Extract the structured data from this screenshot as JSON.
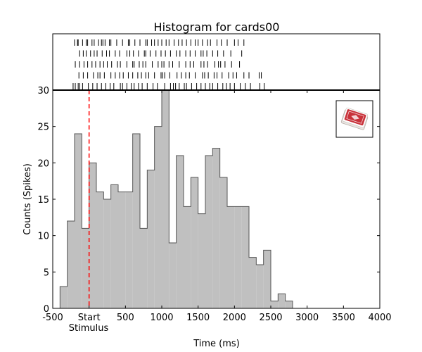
{
  "chart_data": {
    "type": "bar",
    "title": "Histogram for cards00",
    "xlabel": "Time (ms)",
    "ylabel": "Counts (Spikes)",
    "xlim": [
      -500,
      4000
    ],
    "ylim": [
      0,
      30
    ],
    "xticks": [
      {
        "value": -500,
        "label": "-500"
      },
      {
        "value": 0,
        "label": "Start"
      },
      {
        "value": 500,
        "label": "500"
      },
      {
        "value": 1000,
        "label": "1000"
      },
      {
        "value": 1500,
        "label": "1500"
      },
      {
        "value": 2000,
        "label": "2000"
      },
      {
        "value": 2500,
        "label": "2500"
      },
      {
        "value": 3000,
        "label": "3000"
      },
      {
        "value": 3500,
        "label": "3500"
      },
      {
        "value": 4000,
        "label": "4000"
      }
    ],
    "yticks": [
      0,
      5,
      10,
      15,
      20,
      25,
      30
    ],
    "stimulus_label": "Stimulus",
    "stimulus_time": 0,
    "bin_width": 100,
    "bins": [
      {
        "start": -400,
        "count": 3
      },
      {
        "start": -300,
        "count": 12
      },
      {
        "start": -200,
        "count": 24
      },
      {
        "start": -100,
        "count": 11
      },
      {
        "start": 0,
        "count": 20
      },
      {
        "start": 100,
        "count": 16
      },
      {
        "start": 200,
        "count": 15
      },
      {
        "start": 300,
        "count": 17
      },
      {
        "start": 400,
        "count": 16
      },
      {
        "start": 500,
        "count": 16
      },
      {
        "start": 600,
        "count": 24
      },
      {
        "start": 700,
        "count": 11
      },
      {
        "start": 800,
        "count": 19
      },
      {
        "start": 900,
        "count": 25
      },
      {
        "start": 1000,
        "count": 30
      },
      {
        "start": 1100,
        "count": 9
      },
      {
        "start": 1200,
        "count": 21
      },
      {
        "start": 1300,
        "count": 14
      },
      {
        "start": 1400,
        "count": 18
      },
      {
        "start": 1500,
        "count": 13
      },
      {
        "start": 1600,
        "count": 21
      },
      {
        "start": 1700,
        "count": 22
      },
      {
        "start": 1800,
        "count": 18
      },
      {
        "start": 1900,
        "count": 14
      },
      {
        "start": 2000,
        "count": 14
      },
      {
        "start": 2100,
        "count": 14
      },
      {
        "start": 2200,
        "count": 7
      },
      {
        "start": 2300,
        "count": 6
      },
      {
        "start": 2400,
        "count": 8
      },
      {
        "start": 2500,
        "count": 1
      },
      {
        "start": 2600,
        "count": 2
      },
      {
        "start": 2700,
        "count": 1
      }
    ],
    "raster": [
      [
        -200,
        -160,
        -150,
        -90,
        -40,
        -20,
        40,
        70,
        130,
        170,
        190,
        220,
        280,
        300,
        380,
        460,
        540,
        560,
        630,
        700,
        780,
        800,
        860,
        900,
        950,
        1000,
        1060,
        1100,
        1170,
        1230,
        1280,
        1340,
        1400,
        1460,
        1500,
        1560,
        1630,
        1670,
        1760,
        1820,
        1900,
        2000,
        2050,
        2130
      ],
      [
        -130,
        -80,
        -40,
        20,
        70,
        110,
        180,
        240,
        280,
        360,
        420,
        520,
        560,
        610,
        680,
        760,
        780,
        840,
        920,
        990,
        1050,
        1120,
        1200,
        1250,
        1330,
        1390,
        1460,
        1540,
        1570,
        1620,
        1700,
        1770,
        1850,
        1950,
        2100
      ],
      [
        -190,
        -130,
        -70,
        -20,
        40,
        90,
        150,
        200,
        250,
        310,
        390,
        430,
        520,
        600,
        620,
        690,
        740,
        780,
        870,
        950,
        1000,
        1030,
        1100,
        1150,
        1240,
        1330,
        1390,
        1440,
        1540,
        1580,
        1630,
        1730,
        1780,
        1810,
        1870,
        1960,
        2070
      ],
      [
        -140,
        -80,
        -20,
        60,
        120,
        150,
        210,
        300,
        360,
        420,
        470,
        540,
        600,
        670,
        720,
        780,
        820,
        900,
        990,
        1010,
        1040,
        1110,
        1210,
        1270,
        1330,
        1380,
        1460,
        1560,
        1590,
        1640,
        1720,
        1760,
        1830,
        1920,
        1980,
        2030,
        2130,
        2200,
        2340,
        2370
      ],
      [
        -220,
        -190,
        -150,
        -130,
        -90,
        -10,
        50,
        110,
        170,
        230,
        290,
        340,
        430,
        460,
        520,
        580,
        620,
        680,
        730,
        800,
        880,
        940,
        1040,
        1120,
        1160,
        1190,
        1240,
        1310,
        1340,
        1410,
        1480,
        1540,
        1600,
        1660,
        1700,
        1770,
        1840,
        1890,
        1940,
        2000,
        2080,
        2150,
        2220,
        2350,
        2410
      ]
    ],
    "grid": false,
    "legend": "none",
    "inset_icon": "playing-cards-icon",
    "colors": {
      "bar_fill": "#c0c0c0",
      "bar_edge": "#555555",
      "stimulus_line": "#ff0000",
      "raster_tick": "#000000"
    }
  }
}
